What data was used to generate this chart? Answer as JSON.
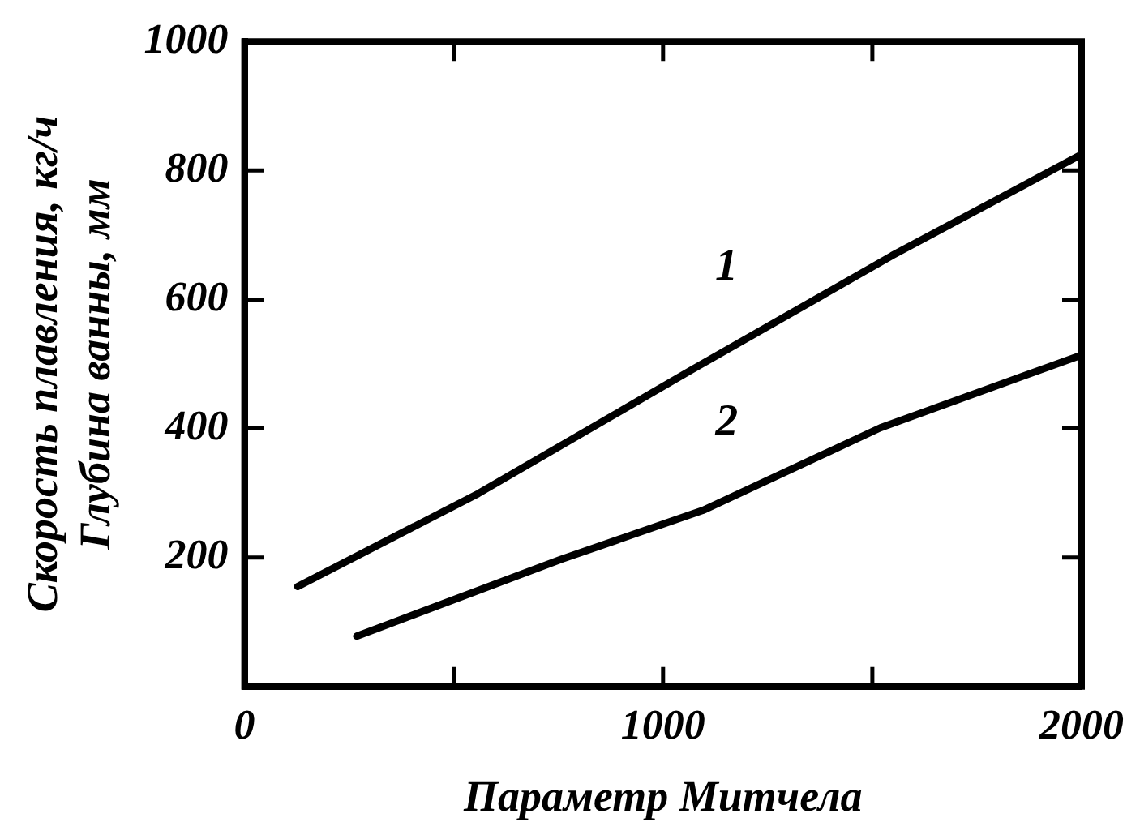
{
  "chart_data": {
    "type": "line",
    "xlabel": "Параметр Митчела",
    "ylabel": "Скорость плавления, кг/ч\nГлубина ванны, мм",
    "xlim": [
      0,
      2000
    ],
    "xticks": [
      0,
      {
        "value": 500,
        "label": null
      },
      1000,
      {
        "value": 1500,
        "label": null
      },
      2000
    ],
    "ylim": [
      0,
      1000
    ],
    "yticks": [
      200,
      400,
      600,
      800,
      1000
    ],
    "series": [
      {
        "name": "1",
        "color": "#000000",
        "x": [
          127,
          558,
          1066,
          1547,
          2000
        ],
        "values": [
          155,
          299,
          490,
          668,
          825
        ]
      },
      {
        "name": "2",
        "color": "#000000",
        "x": [
          268,
          756,
          1095,
          1519,
          2000
        ],
        "values": [
          78,
          197,
          273,
          401,
          514
        ]
      }
    ],
    "grid": false,
    "legend": false,
    "marker": "none",
    "line_style": "solid"
  }
}
